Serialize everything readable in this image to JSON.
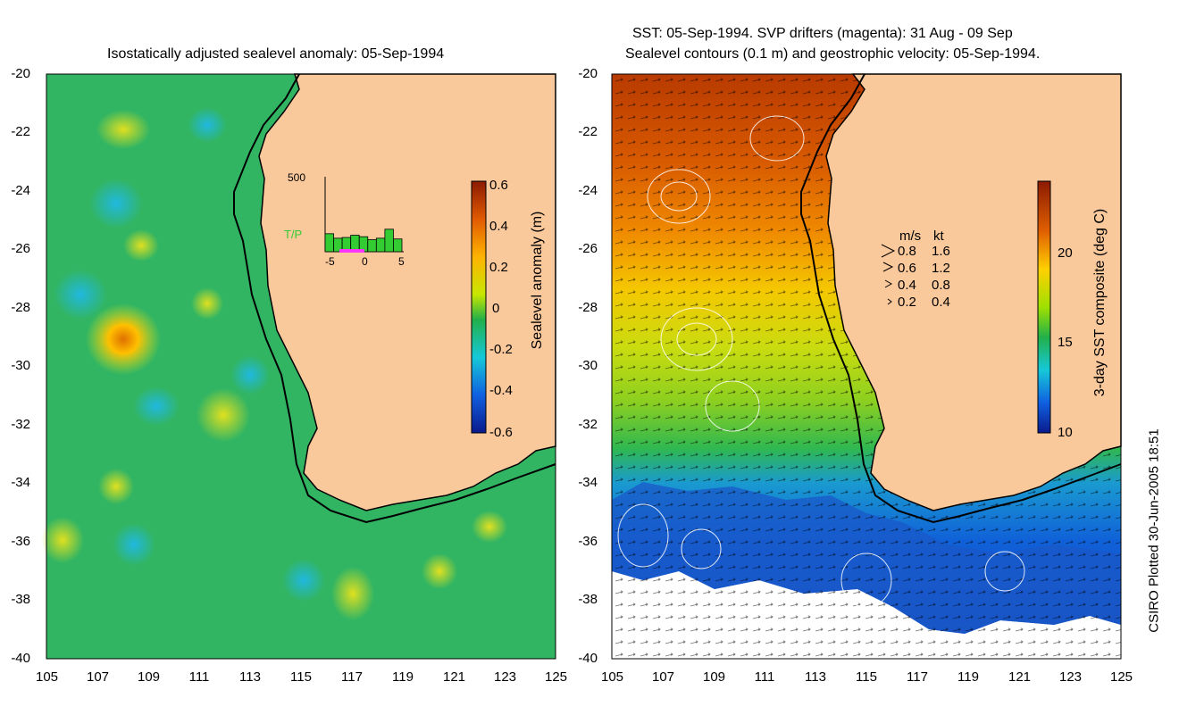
{
  "left_panel": {
    "title": "Isostatically adjusted sealevel anomaly: 05-Sep-1994",
    "lat_ticks": [
      "-20",
      "-22",
      "-24",
      "-26",
      "-28",
      "-30",
      "-32",
      "-34",
      "-36",
      "-38",
      "-40"
    ],
    "lon_ticks": [
      "105",
      "107",
      "109",
      "111",
      "113",
      "115",
      "117",
      "119",
      "121",
      "123",
      "125"
    ],
    "colorbar": {
      "label": "Sealevel anomaly (m)",
      "ticks": [
        "0.6",
        "0.4",
        "0.2",
        "0",
        "-0.2",
        "-0.4",
        "-0.6"
      ],
      "range": [
        -0.6,
        0.6
      ]
    },
    "inset": {
      "ymax_label": "500",
      "series_label": "T/P",
      "x_ticks": [
        "-5",
        "0",
        "5"
      ],
      "bar_values": [
        120,
        90,
        95,
        110,
        100,
        80,
        90,
        150,
        85
      ],
      "series_color": "#33cc33",
      "highlight_color": "#ff33ff"
    }
  },
  "right_panel": {
    "title_line1": "SST: 05-Sep-1994. SVP drifters (magenta): 31 Aug - 09 Sep",
    "title_line2": "Sealevel contours (0.1 m) and geostrophic velocity: 05-Sep-1994.",
    "lat_ticks": [
      "-20",
      "-22",
      "-24",
      "-26",
      "-28",
      "-30",
      "-32",
      "-34",
      "-36",
      "-38",
      "-40"
    ],
    "lon_ticks": [
      "105",
      "107",
      "109",
      "111",
      "113",
      "115",
      "117",
      "119",
      "121",
      "123",
      "125"
    ],
    "colorbar": {
      "label": "3-day SST composite (deg C)",
      "ticks": [
        "20",
        "15",
        "10"
      ],
      "range": [
        10,
        24
      ]
    },
    "velocity_legend": {
      "header_ms": "m/s",
      "header_kt": "kt",
      "rows": [
        {
          "ms": "0.8",
          "kt": "1.6"
        },
        {
          "ms": "0.6",
          "kt": "1.2"
        },
        {
          "ms": "0.4",
          "kt": "0.8"
        },
        {
          "ms": "0.2",
          "kt": "0.4"
        }
      ]
    }
  },
  "credit": "CSIRO Plotted 30-Jun-2005 18:51",
  "colors": {
    "land": "#f9c89b",
    "ocean_green": "#33b866",
    "coast": "#000000"
  }
}
